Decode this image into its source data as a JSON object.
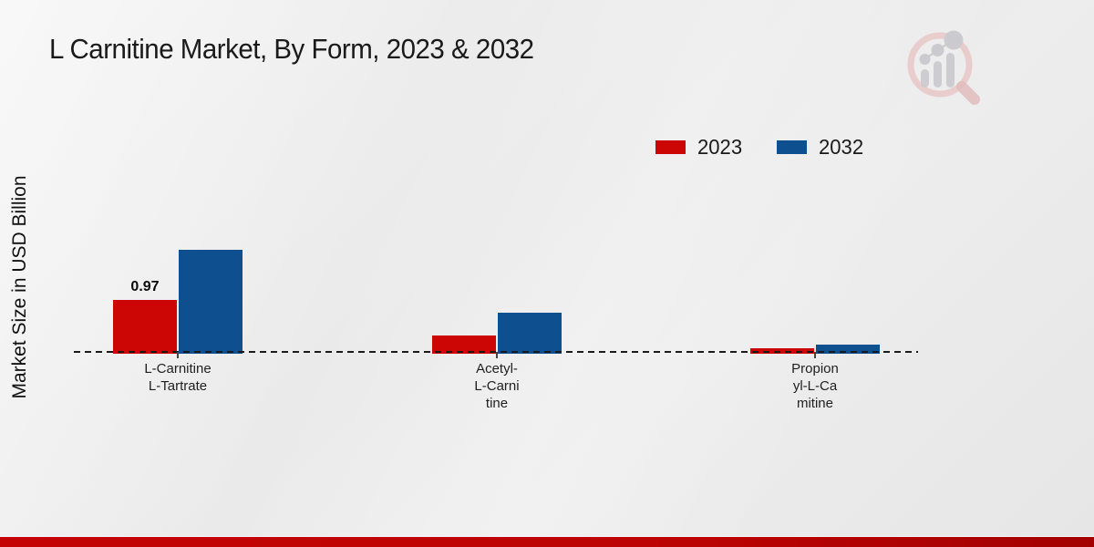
{
  "chart_data": {
    "type": "bar",
    "title": "L Carnitine Market, By Form, 2023 & 2032",
    "ylabel": "Market Size in USD Billion",
    "xlabel": "",
    "categories": [
      "L-Carnitine L-Tartrate",
      "Acetyl-L-Carnitine",
      "Propionyl-L-Camitine"
    ],
    "category_label_lines": [
      [
        "L-Carnitine",
        "L-Tartrate"
      ],
      [
        "Acetyl-",
        "L-Carni",
        "tine"
      ],
      [
        "Propion",
        "yl-L-Ca",
        "mitine"
      ]
    ],
    "series": [
      {
        "name": "2023",
        "color": "#cc0505",
        "values": [
          0.97,
          0.31,
          0.07
        ],
        "bar_labels": [
          "0.97",
          "",
          ""
        ]
      },
      {
        "name": "2032",
        "color": "#0e4f90",
        "values": [
          1.9,
          0.73,
          0.14
        ],
        "bar_labels": [
          "",
          "",
          ""
        ]
      }
    ],
    "ylim": [
      0,
      2.1
    ],
    "grid": false,
    "legend_position": "top-right",
    "baseline_style": "dashed",
    "annotations": [
      "0.97 data label shown above first 2023 bar"
    ]
  },
  "colors": {
    "series_2023": "#cc0505",
    "series_2032": "#0e4f90",
    "footer_red": "#bd0303",
    "background": "#ebebeb",
    "text": "#1a1a1a"
  },
  "watermark": {
    "icon": "magnifier-bar-chart-logo"
  }
}
